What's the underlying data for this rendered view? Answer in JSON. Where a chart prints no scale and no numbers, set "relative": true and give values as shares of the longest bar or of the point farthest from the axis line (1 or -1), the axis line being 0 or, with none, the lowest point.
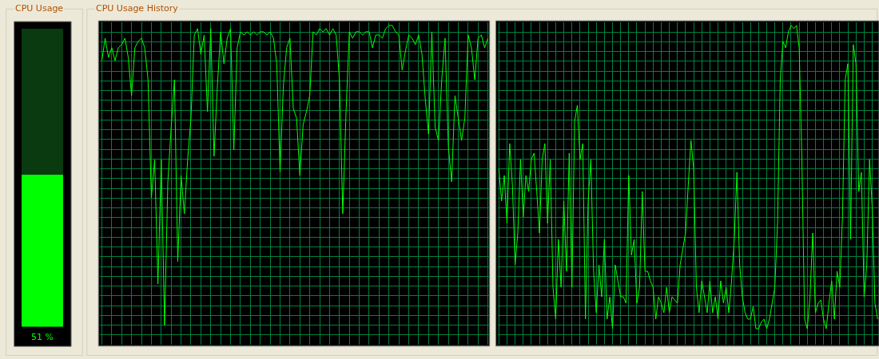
{
  "chart_data": [
    {
      "type": "bar",
      "title": "CPU Usage",
      "categories": [
        null
      ],
      "stacked": true,
      "series": [
        {
          "color": "#00ff00",
          "values": [
            51
          ],
          "value_labels": [
            "51 %"
          ]
        },
        {
          "color": "#0a3a10",
          "values": [
            49
          ]
        }
      ],
      "ylim": [
        0,
        100
      ],
      "tick_labels": false,
      "grid": false
    },
    {
      "type": "line",
      "title": "CPU Usage History",
      "relative": true,
      "grid": true,
      "tick_labels": false,
      "color": "#00ff00",
      "categories": [
        null,
        null,
        null,
        null,
        null,
        null,
        null,
        null,
        null,
        null,
        null,
        null,
        null,
        null,
        null,
        null,
        null,
        null,
        null,
        null,
        null,
        null,
        null,
        null,
        null,
        null,
        null,
        null,
        null,
        null,
        null,
        null,
        null,
        null,
        null,
        null,
        null,
        null,
        null,
        null,
        null,
        null,
        null,
        null,
        null,
        null,
        null,
        null,
        null,
        null,
        null,
        null,
        null,
        null,
        null,
        null,
        null,
        null,
        null,
        null,
        null,
        null,
        null,
        null,
        null,
        null,
        null,
        null,
        null,
        null,
        null,
        null,
        null,
        null,
        null,
        null,
        null,
        null,
        null,
        null,
        null,
        null,
        null,
        null,
        null,
        null,
        null,
        null,
        null,
        null,
        null,
        null,
        null,
        null,
        null,
        null,
        null,
        null,
        null,
        null,
        null,
        null,
        null,
        null,
        null,
        null,
        null,
        null,
        null,
        null,
        null,
        null,
        null,
        null,
        null,
        null,
        null,
        null
      ],
      "values": [
        0.89,
        0.96,
        0.9,
        0.93,
        0.89,
        0.93,
        0.94,
        0.96,
        0.9,
        0.78,
        0.93,
        0.95,
        0.96,
        0.93,
        0.83,
        0.46,
        0.58,
        0.19,
        0.58,
        0.06,
        0.51,
        0.68,
        0.83,
        0.26,
        0.53,
        0.41,
        0.58,
        0.71,
        0.97,
        0.99,
        0.91,
        0.97,
        0.73,
        0.99,
        0.59,
        0.81,
        0.98,
        0.88,
        0.96,
        0.99,
        0.61,
        0.93,
        0.98,
        0.97,
        0.98,
        0.97,
        0.98,
        0.97,
        0.98,
        0.98,
        0.97,
        0.98,
        0.96,
        0.88,
        0.54,
        0.81,
        0.93,
        0.96,
        0.74,
        0.71,
        0.53,
        0.69,
        0.73,
        0.78,
        0.98,
        0.97,
        0.99,
        0.98,
        0.99,
        0.97,
        0.99,
        0.97,
        0.83,
        0.41,
        0.73,
        0.98,
        0.96,
        0.98,
        0.98,
        0.97,
        0.98,
        0.98,
        0.93,
        0.97,
        0.97,
        0.96,
        0.99,
        1,
        1,
        0.98,
        0.97,
        0.86,
        0.92,
        0.97,
        0.96,
        0.94,
        0.97,
        0.91,
        0.77,
        0.66,
        0.98,
        0.68,
        0.64,
        0.83,
        0.96,
        0.62,
        0.51,
        0.78,
        0.71,
        0.64,
        0.71,
        0.97,
        0.93,
        0.83,
        0.96,
        0.97,
        0.93,
        0.96
      ]
    },
    {
      "type": "line",
      "relative": true,
      "grid": true,
      "tick_labels": false,
      "color": "#00ff00",
      "categories": [
        null,
        null,
        null,
        null,
        null,
        null,
        null,
        null,
        null,
        null,
        null,
        null,
        null,
        null,
        null,
        null,
        null,
        null,
        null,
        null,
        null,
        null,
        null,
        null,
        null,
        null,
        null,
        null,
        null,
        null,
        null,
        null,
        null,
        null,
        null,
        null,
        null,
        null,
        null,
        null,
        null,
        null,
        null,
        null,
        null,
        null,
        null,
        null,
        null,
        null,
        null,
        null,
        null,
        null,
        null,
        null,
        null,
        null,
        null,
        null,
        null,
        null,
        null,
        null,
        null,
        null,
        null,
        null,
        null,
        null,
        null,
        null,
        null,
        null,
        null,
        null,
        null,
        null,
        null,
        null,
        null,
        null,
        null,
        null,
        null,
        null,
        null,
        null,
        null,
        null,
        null,
        null,
        null,
        null,
        null,
        null,
        null,
        null,
        null,
        null,
        null,
        null,
        null,
        null,
        null,
        null,
        null,
        null,
        null,
        null,
        null,
        null,
        null,
        null,
        null,
        null,
        null,
        null,
        null,
        null,
        null,
        null,
        null,
        null,
        null,
        null,
        null,
        null,
        null,
        null,
        null,
        null,
        null,
        null,
        null,
        null,
        null,
        null,
        null,
        null,
        null
      ],
      "values": [
        0.55,
        0.45,
        0.53,
        0.38,
        0.63,
        0.5,
        0.25,
        0.35,
        0.58,
        0.4,
        0.53,
        0.48,
        0.58,
        0.6,
        0.48,
        0.35,
        0.58,
        0.63,
        0.38,
        0.58,
        0.18,
        0.08,
        0.33,
        0.18,
        0.45,
        0.23,
        0.6,
        0.18,
        0.7,
        0.75,
        0.58,
        0.63,
        0.08,
        0.45,
        0.58,
        0.23,
        0.1,
        0.25,
        0.15,
        0.33,
        0.08,
        0.15,
        0.05,
        0.25,
        0.2,
        0.15,
        0.15,
        0.13,
        0.53,
        0.28,
        0.33,
        0.13,
        0.18,
        0.48,
        0.23,
        0.23,
        0.2,
        0.18,
        0.08,
        0.15,
        0.13,
        0.1,
        0.18,
        0.1,
        0.15,
        0.14,
        0.13,
        0.25,
        0.3,
        0.35,
        0.5,
        0.64,
        0.55,
        0.18,
        0.1,
        0.2,
        0.15,
        0.1,
        0.2,
        0.1,
        0.15,
        0.08,
        0.2,
        0.13,
        0.18,
        0.1,
        0.2,
        0.33,
        0.54,
        0.25,
        0.15,
        0.1,
        0.08,
        0.08,
        0.12,
        0.05,
        0.05,
        0.07,
        0.08,
        0.05,
        0.08,
        0.13,
        0.18,
        0.38,
        0.83,
        0.95,
        0.93,
        0.98,
        1,
        0.99,
        1,
        0.93,
        0.58,
        0.08,
        0.05,
        0.15,
        0.35,
        0.1,
        0.13,
        0.14,
        0.08,
        0.05,
        0.13,
        0.2,
        0.08,
        0.23,
        0.18,
        0.4,
        0.83,
        0.88,
        0.33,
        0.94,
        0.88,
        0.48,
        0.54,
        0.15,
        0.25,
        0.58,
        0.43,
        0.13,
        0.08
      ]
    }
  ]
}
